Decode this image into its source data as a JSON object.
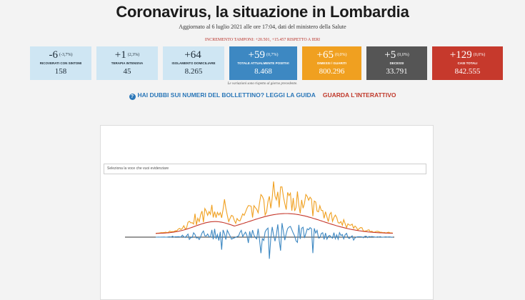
{
  "header": {
    "title": "Coronavirus, la situazione in Lombardia",
    "updated": "Aggiornato al 6 luglio 2021 alle ore 17:04, dati del ministero della Salute",
    "increment": "INCREMENTO TAMPONI: +20.501, +15.457 RISPETTO A IERI"
  },
  "cards": [
    {
      "delta": "-6",
      "pct": "(-3,7%)",
      "label": "RICOVERATI CON SINTOMI",
      "total": "158",
      "bg": "#cfe6f3",
      "fg": "#1d2b36"
    },
    {
      "delta": "+1",
      "pct": "(2,3%)",
      "label": "TERAPIA INTENSIVA",
      "total": "45",
      "bg": "#cfe6f3",
      "fg": "#1d2b36"
    },
    {
      "delta": "+64",
      "pct": "",
      "label": "ISOLAMENTO DOMICILIARE",
      "total": "8.265",
      "bg": "#cfe6f3",
      "fg": "#1d2b36"
    },
    {
      "delta": "+59",
      "pct": "(0,7%)",
      "label": "TOTALE ATTUALMENTE POSITIVI",
      "total": "8.468",
      "bg": "#3d88c2",
      "fg": "#ffffff"
    },
    {
      "delta": "+65",
      "pct": "(0,0%)",
      "label": "DIMESSI / GUARITI",
      "total": "800.296",
      "bg": "#f0a020",
      "fg": "#ffffff"
    },
    {
      "delta": "+5",
      "pct": "(0,0%)",
      "label": "DECESSI",
      "total": "33.791",
      "bg": "#555555",
      "fg": "#ffffff"
    },
    {
      "delta": "+129",
      "pct": "(0,0%)",
      "label": "CASI TOTALI",
      "total": "842.555",
      "bg": "#c6392c",
      "fg": "#ffffff"
    }
  ],
  "note": "Le variazioni sono rispetto al giorno precedente.",
  "links": {
    "guide_icon": "question-circle-icon",
    "guide": "HAI DUBBI SUI NUMERI DEL BOLLETTINO? LEGGI LA GUIDA",
    "interactive": "GUARDA L'INTERATTIVO"
  },
  "chart": {
    "select_placeholder": "Seleziona la voce che vuoi evidenziare"
  },
  "colors": {
    "orange": "#f0a020",
    "blue": "#3d88c2",
    "red": "#c6392c",
    "light_blue": "#cfe6f3",
    "gray": "#555555"
  }
}
